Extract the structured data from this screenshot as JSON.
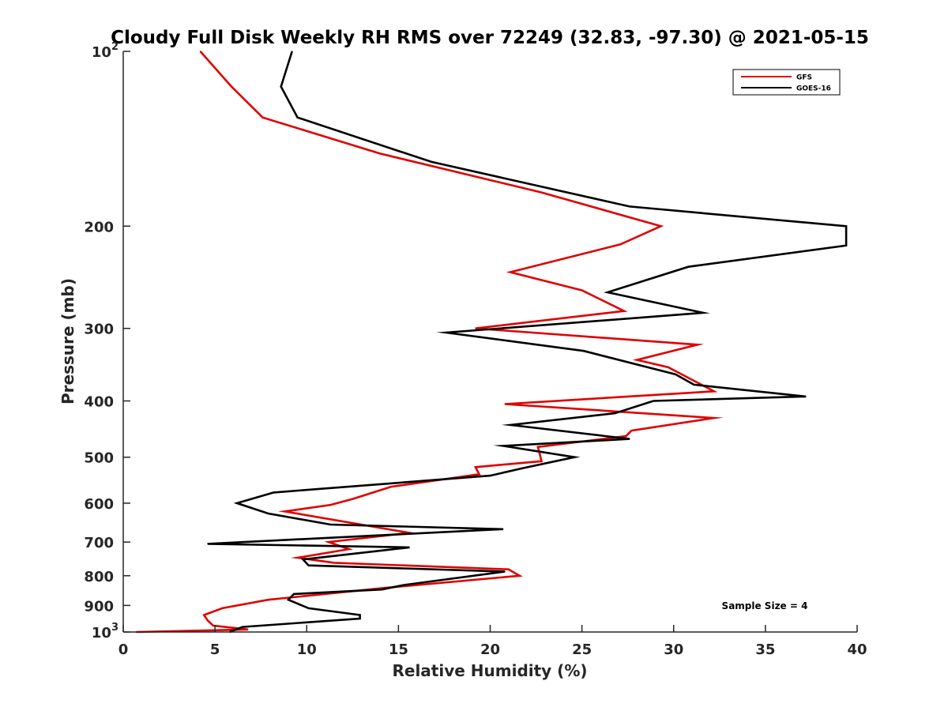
{
  "chart_data": {
    "type": "line",
    "title": "Cloudy Full Disk Weekly RH RMS over 72249 (32.83, -97.30) @ 2021-05-15",
    "xlabel": "Relative Humidity (%)",
    "ylabel": "Pressure (mb)",
    "xlim": [
      0,
      40
    ],
    "ylim": [
      1000,
      100
    ],
    "y_scale": "log",
    "y_reversed": true,
    "x_ticks": [
      "0",
      "5",
      "10",
      "15",
      "20",
      "25",
      "30",
      "35",
      "40"
    ],
    "y_ticks": [
      {
        "value": 100,
        "base": "10",
        "exp": "2"
      },
      {
        "value": 200,
        "label": "200"
      },
      {
        "value": 300,
        "label": "300"
      },
      {
        "value": 400,
        "label": "400"
      },
      {
        "value": 500,
        "label": "500"
      },
      {
        "value": 600,
        "label": "600"
      },
      {
        "value": 700,
        "label": "700"
      },
      {
        "value": 800,
        "label": "800"
      },
      {
        "value": 900,
        "label": "900"
      },
      {
        "value": 1000,
        "base": "10",
        "exp": "3"
      }
    ],
    "legend_position": "top-right",
    "annotation": "Sample Size = 4",
    "series": [
      {
        "name": "GFS",
        "color": "#e00000",
        "points": [
          [
            4.2,
            100
          ],
          [
            5.9,
            115
          ],
          [
            7.6,
            130
          ],
          [
            14.0,
            150
          ],
          [
            22.8,
            175
          ],
          [
            29.3,
            200
          ],
          [
            27.1,
            215
          ],
          [
            21.1,
            240
          ],
          [
            25.0,
            258
          ],
          [
            27.3,
            280
          ],
          [
            19.2,
            300
          ],
          [
            31.3,
            320
          ],
          [
            28.0,
            340
          ],
          [
            29.7,
            350
          ],
          [
            32.2,
            385
          ],
          [
            20.8,
            405
          ],
          [
            32.2,
            428
          ],
          [
            27.7,
            450
          ],
          [
            27.4,
            460
          ],
          [
            22.6,
            480
          ],
          [
            22.8,
            508
          ],
          [
            19.2,
            520
          ],
          [
            19.4,
            535
          ],
          [
            14.6,
            562
          ],
          [
            12.5,
            590
          ],
          [
            11.3,
            604
          ],
          [
            8.8,
            620
          ],
          [
            15.6,
            675
          ],
          [
            11.2,
            700
          ],
          [
            12.3,
            720
          ],
          [
            9.5,
            745
          ],
          [
            11.5,
            760
          ],
          [
            21.0,
            780
          ],
          [
            21.6,
            800
          ],
          [
            14.2,
            840
          ],
          [
            7.9,
            880
          ],
          [
            5.4,
            910
          ],
          [
            4.4,
            935
          ],
          [
            4.6,
            955
          ],
          [
            4.9,
            975
          ],
          [
            6.8,
            990
          ],
          [
            0.7,
            1000
          ]
        ]
      },
      {
        "name": "GOES-16",
        "color": "#000000",
        "points": [
          [
            9.2,
            100
          ],
          [
            8.6,
            115
          ],
          [
            9.5,
            130
          ],
          [
            16.8,
            155
          ],
          [
            27.6,
            185
          ],
          [
            39.4,
            200
          ],
          [
            39.4,
            216
          ],
          [
            30.8,
            235
          ],
          [
            26.4,
            260
          ],
          [
            31.6,
            282
          ],
          [
            17.6,
            305
          ],
          [
            25.1,
            328
          ],
          [
            30.1,
            360
          ],
          [
            31.1,
            375
          ],
          [
            37.2,
            393
          ],
          [
            28.9,
            400
          ],
          [
            26.8,
            420
          ],
          [
            21.1,
            440
          ],
          [
            27.6,
            465
          ],
          [
            20.7,
            478
          ],
          [
            24.6,
            500
          ],
          [
            21.8,
            522
          ],
          [
            20.0,
            538
          ],
          [
            8.2,
            575
          ],
          [
            6.2,
            600
          ],
          [
            7.9,
            625
          ],
          [
            11.3,
            653
          ],
          [
            20.7,
            665
          ],
          [
            4.6,
            705
          ],
          [
            15.6,
            715
          ],
          [
            9.8,
            750
          ],
          [
            10.1,
            768
          ],
          [
            20.8,
            787
          ],
          [
            15.3,
            830
          ],
          [
            14.1,
            845
          ],
          [
            9.3,
            860
          ],
          [
            9.0,
            880
          ],
          [
            10.1,
            910
          ],
          [
            12.9,
            935
          ],
          [
            12.9,
            948
          ],
          [
            6.5,
            980
          ],
          [
            5.8,
            1000
          ]
        ]
      }
    ]
  }
}
